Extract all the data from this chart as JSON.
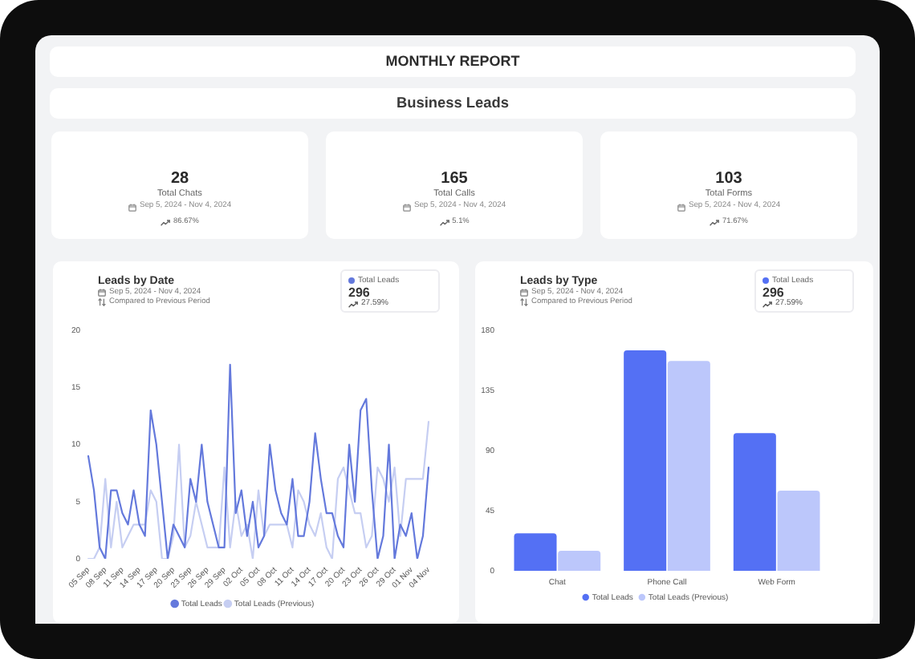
{
  "chart_data": [
    {
      "type": "other",
      "title": "MONTHLY REPORT",
      "subtitle": "Business Leads"
    },
    {
      "type": "other",
      "annotations": [
        "28",
        "Total Chats",
        "Sep 5, 2024 - Nov 4, 2024",
        "86.67%"
      ]
    },
    {
      "type": "other",
      "annotations": [
        "165",
        "Total Calls",
        "Sep 5, 2024 - Nov 4, 2024",
        "5.1%"
      ]
    },
    {
      "type": "other",
      "annotations": [
        "103",
        "Total Forms",
        "Sep 5, 2024 - Nov 4, 2024",
        "71.67%"
      ]
    },
    {
      "type": "line",
      "title": "Leads by Date",
      "subtitle": "Sep 5, 2024 - Nov 4, 2024",
      "annotations": [
        "Compared to Previous Period",
        "Total Leads",
        "296",
        "27.59%"
      ],
      "categories": [
        "05 Sep",
        null,
        null,
        "08 Sep",
        null,
        null,
        "11 Sep",
        null,
        null,
        "14 Sep",
        null,
        null,
        "17 Sep",
        null,
        null,
        "20 Sep",
        null,
        null,
        "23 Sep",
        null,
        null,
        "26 Sep",
        null,
        null,
        "29 Sep",
        null,
        null,
        "02 Oct",
        null,
        null,
        "05 Oct",
        null,
        null,
        "08 Oct",
        null,
        null,
        "11 Oct",
        null,
        null,
        "14 Oct",
        null,
        null,
        "17 Oct",
        null,
        null,
        "20 Oct",
        null,
        null,
        "23 Oct",
        null,
        null,
        "26 Oct",
        null,
        null,
        "29 Oct",
        null,
        null,
        "01 Nov",
        null,
        null,
        "04 Nov"
      ],
      "series": [
        {
          "name": "Total Leads",
          "color": "#6479dc",
          "values": [
            9,
            6,
            1,
            0,
            6,
            6,
            4,
            3,
            6,
            3,
            2,
            13,
            10,
            5,
            0,
            3,
            2,
            1,
            7,
            5,
            10,
            5,
            3,
            1,
            1,
            17,
            4,
            6,
            2,
            5,
            1,
            2,
            10,
            6,
            4,
            3,
            7,
            2,
            2,
            5,
            11,
            7,
            4,
            4,
            2,
            1,
            10,
            5,
            13,
            14,
            6,
            0,
            2,
            10,
            0,
            3,
            2,
            4,
            0,
            2,
            8
          ]
        },
        {
          "name": "Total Leads (Previous)",
          "color": "#c6cef2",
          "values": [
            0,
            0,
            1,
            7,
            1,
            5,
            1,
            2,
            3,
            3,
            3,
            6,
            5,
            0,
            0,
            2,
            10,
            1,
            2,
            5,
            3,
            1,
            1,
            1,
            8,
            1,
            5,
            2,
            3,
            0,
            6,
            2,
            3,
            3,
            3,
            3,
            1,
            6,
            5,
            3,
            2,
            4,
            1,
            0,
            7,
            8,
            6,
            4,
            4,
            1,
            2,
            8,
            7,
            5,
            8,
            2,
            7,
            7,
            7,
            7,
            12
          ]
        }
      ],
      "ylim": [
        0,
        20
      ],
      "yticks": [
        0,
        5,
        10,
        15,
        20
      ],
      "legend": "bottom"
    },
    {
      "type": "bar",
      "title": "Leads by Type",
      "subtitle": "Sep 5, 2024 - Nov 4, 2024",
      "annotations": [
        "Compared to Previous Period",
        "Total Leads",
        "296",
        "27.59%"
      ],
      "categories": [
        "Chat",
        "Phone Call",
        "Web Form"
      ],
      "series": [
        {
          "name": "Total Leads",
          "color": "#5470f4",
          "values": [
            28,
            165,
            103
          ]
        },
        {
          "name": "Total Leads (Previous)",
          "color": "#bcc7fb",
          "values": [
            15,
            157,
            60
          ]
        }
      ],
      "ylim": [
        0,
        180
      ],
      "yticks": [
        0,
        45,
        90,
        135,
        180
      ],
      "legend": "bottom"
    }
  ]
}
